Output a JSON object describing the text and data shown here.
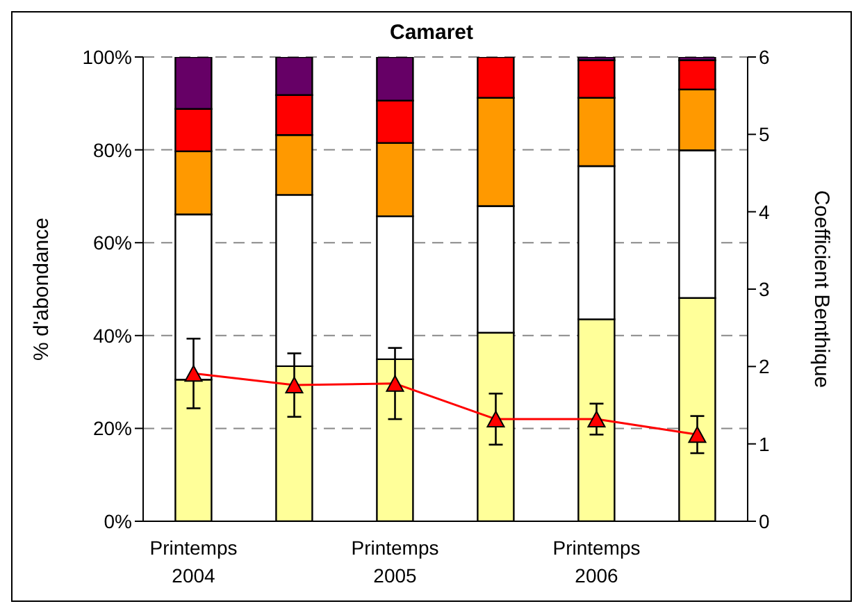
{
  "chart_data": {
    "type": "bar",
    "title": "Camaret",
    "ylabel": "% d'abondance",
    "y2label": "Coefficient Benthique",
    "categories": [
      "Printemps 2004",
      null,
      "Printemps 2005",
      null,
      "Printemps 2006",
      null
    ],
    "stacked": true,
    "series": [
      {
        "color": "#ffff99",
        "values": [
          30.5,
          33.4,
          34.9,
          40.6,
          43.5,
          48.1
        ]
      },
      {
        "color": "#ffffff",
        "values": [
          35.6,
          36.9,
          30.8,
          27.3,
          33.0,
          31.8
        ]
      },
      {
        "color": "#ff9900",
        "values": [
          13.6,
          12.9,
          15.8,
          23.3,
          14.7,
          13.1
        ]
      },
      {
        "color": "#ff0000",
        "values": [
          9.1,
          8.6,
          9.1,
          8.8,
          8.1,
          6.3
        ]
      },
      {
        "color": "#660066",
        "values": [
          11.2,
          8.2,
          9.4,
          0,
          0.7,
          0.7
        ]
      },
      {
        "type": "line",
        "axis": "y2",
        "color": "#ff0000",
        "marker": "triangle",
        "values": [
          1.91,
          1.76,
          1.78,
          1.32,
          1.32,
          1.12
        ],
        "errors": [
          0.45,
          0.41,
          0.46,
          0.33,
          0.2,
          0.24
        ]
      }
    ],
    "ylim": [
      0,
      100
    ],
    "yticks": [
      {
        "value": 0,
        "label": "0%"
      },
      {
        "value": 20,
        "label": "20%"
      },
      {
        "value": 40,
        "label": "40%"
      },
      {
        "value": 60,
        "label": "60%"
      },
      {
        "value": 80,
        "label": "80%"
      },
      {
        "value": 100,
        "label": "100%"
      }
    ],
    "y2lim": [
      0,
      6
    ],
    "y2ticks": [
      0,
      1,
      2,
      3,
      4,
      5,
      6
    ],
    "grid": "y",
    "legend": false
  }
}
